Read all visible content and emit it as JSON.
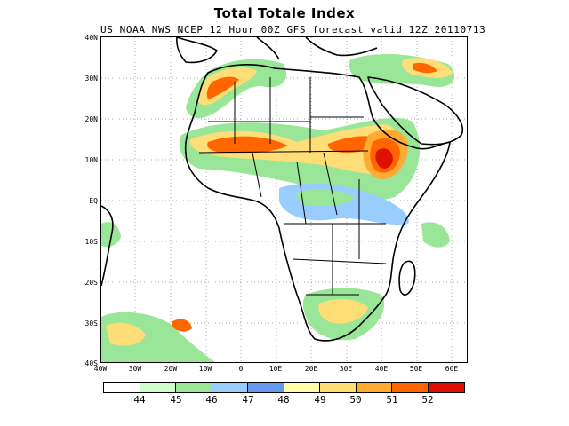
{
  "title": "Total Totale Index",
  "subtitle": "US NOAA NWS NCEP 12 Hour 00Z GFS forecast valid 12Z 20110713",
  "lat_labels": [
    "40N",
    "30N",
    "20N",
    "10N",
    "EQ",
    "10S",
    "20S",
    "30S",
    "40S"
  ],
  "lon_labels": [
    "40W",
    "30W",
    "20W",
    "10W",
    "0",
    "10E",
    "20E",
    "30E",
    "40E",
    "50E",
    "60E"
  ],
  "colorbar": {
    "colors": [
      "#ffffff",
      "#ccffcc",
      "#99e699",
      "#99ccff",
      "#6699ee",
      "#ffffaa",
      "#ffdd77",
      "#ffaa33",
      "#ff6600",
      "#dd1100"
    ],
    "labels": [
      "44",
      "45",
      "46",
      "47",
      "48",
      "49",
      "50",
      "51",
      "52"
    ]
  }
}
